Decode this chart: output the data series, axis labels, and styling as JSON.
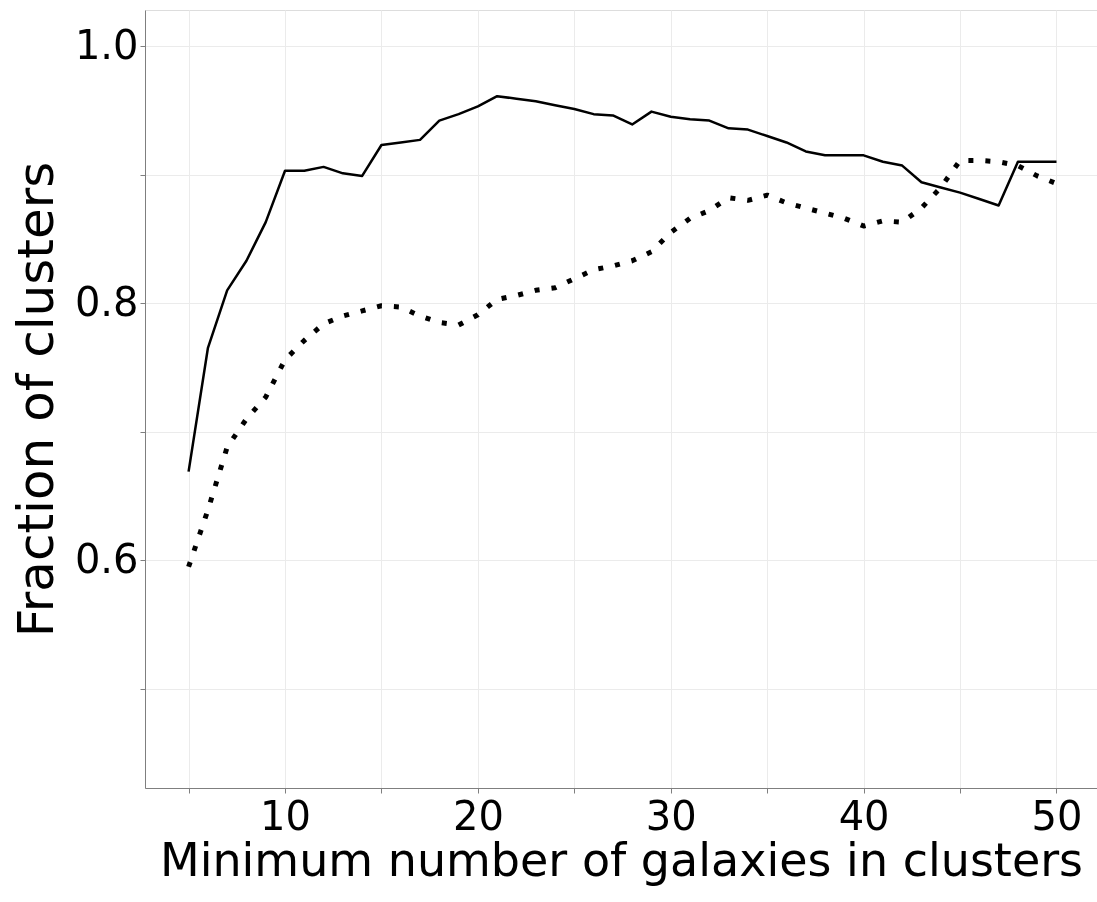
{
  "chart_data": {
    "type": "line",
    "xlabel": "Minimum number of galaxies in clusters",
    "ylabel": "Fraction of clusters",
    "x": [
      5,
      6,
      7,
      8,
      9,
      10,
      11,
      12,
      13,
      14,
      15,
      16,
      17,
      18,
      19,
      20,
      21,
      22,
      23,
      24,
      25,
      26,
      27,
      28,
      29,
      30,
      31,
      32,
      33,
      34,
      35,
      36,
      37,
      38,
      39,
      40,
      41,
      42,
      43,
      44,
      45,
      46,
      47,
      48,
      49,
      50
    ],
    "series": [
      {
        "color": "#000000",
        "line_style": "solid",
        "values": [
          0.669,
          0.765,
          0.81,
          0.833,
          0.863,
          0.903,
          0.903,
          0.906,
          0.901,
          0.899,
          0.923,
          0.925,
          0.927,
          0.942,
          0.947,
          0.953,
          0.961,
          0.959,
          0.957,
          0.954,
          0.951,
          0.947,
          0.946,
          0.939,
          0.949,
          0.945,
          0.943,
          0.942,
          0.936,
          0.935,
          0.93,
          0.925,
          0.918,
          0.915,
          0.915,
          0.915,
          0.91,
          0.907,
          0.894,
          0.89,
          0.886,
          0.881,
          0.876,
          0.91,
          0.91,
          0.91
        ]
      },
      {
        "color": "#000000",
        "line_style": "dotted",
        "values": [
          0.595,
          0.639,
          0.688,
          0.71,
          0.727,
          0.756,
          0.771,
          0.784,
          0.79,
          0.794,
          0.798,
          0.797,
          0.79,
          0.785,
          0.783,
          0.791,
          0.803,
          0.806,
          0.81,
          0.812,
          0.819,
          0.826,
          0.829,
          0.833,
          0.84,
          0.855,
          0.866,
          0.872,
          0.882,
          0.88,
          0.884,
          0.878,
          0.874,
          0.87,
          0.866,
          0.86,
          0.864,
          0.863,
          0.874,
          0.89,
          0.911,
          0.911,
          0.91,
          0.907,
          0.899,
          0.893
        ]
      }
    ],
    "xlim": [
      2.74,
      52.1
    ],
    "ylim": [
      0.423,
      1.028
    ],
    "xticks": [
      {
        "value": 5,
        "label": null
      },
      10,
      {
        "value": 15,
        "label": null
      },
      20,
      {
        "value": 25,
        "label": null
      },
      30,
      {
        "value": 35,
        "label": null
      },
      40,
      {
        "value": 45,
        "label": null
      },
      50
    ],
    "yticks": [
      {
        "value": 0.5,
        "label": null
      },
      0.6,
      {
        "value": 0.7,
        "label": null
      },
      0.8,
      {
        "value": 0.9,
        "label": null
      },
      {
        "value": 1.0,
        "label": "1.0"
      }
    ],
    "grid": true
  }
}
